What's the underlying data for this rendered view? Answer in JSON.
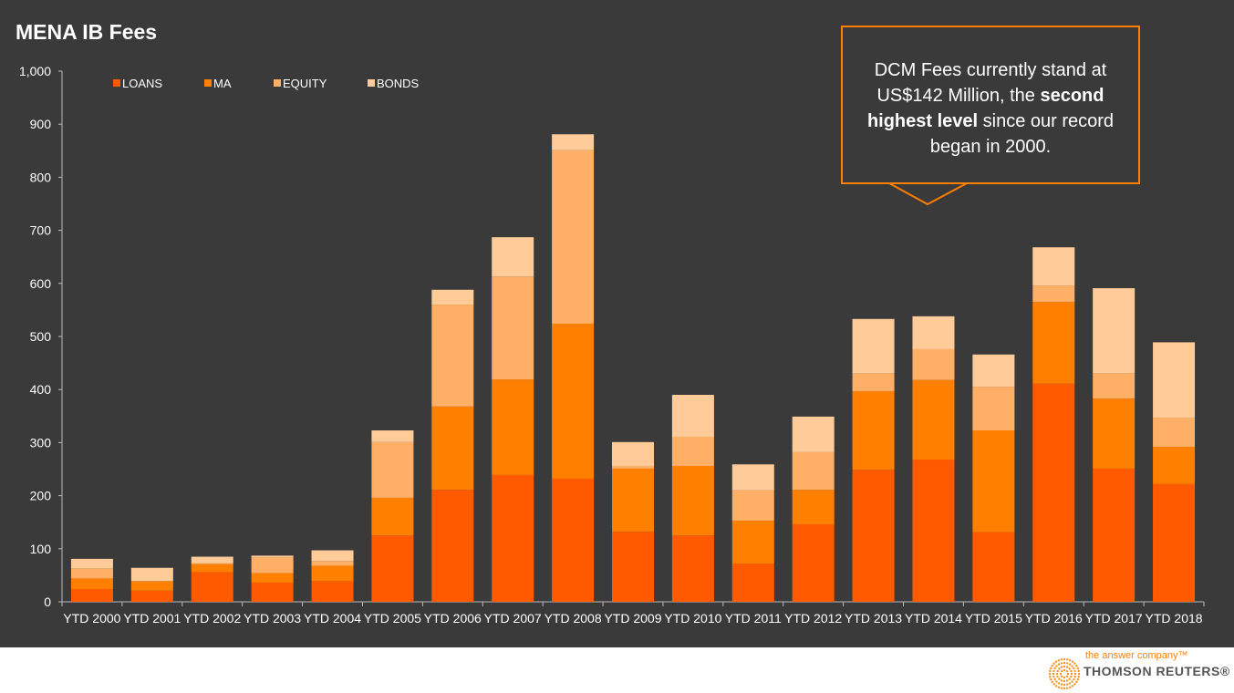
{
  "title": "MENA IB Fees",
  "callout": {
    "text_a": "DCM Fees currently stand at US$142 Million, the ",
    "text_bold": "second highest level",
    "text_b": " since our record began in 2000."
  },
  "footer": {
    "tagline": "the answer company™",
    "brand": "THOMSON REUTERS®"
  },
  "colors": {
    "background": "#3a3a3a",
    "accent": "#ff8000"
  },
  "chart_data": {
    "type": "bar",
    "stacked": true,
    "title": "MENA IB Fees",
    "ylim": [
      0,
      1000
    ],
    "yticks": [
      0,
      100,
      200,
      300,
      400,
      500,
      600,
      700,
      800,
      900,
      1000
    ],
    "ytick_labels": [
      "0",
      "100",
      "200",
      "300",
      "400",
      "500",
      "600",
      "700",
      "800",
      "900",
      "1,000"
    ],
    "legend_position": "top-left",
    "categories": [
      "YTD 2000",
      "YTD 2001",
      "YTD 2002",
      "YTD 2003",
      "YTD 2004",
      "YTD 2005",
      "YTD 2006",
      "YTD 2007",
      "YTD 2008",
      "YTD 2009",
      "YTD 2010",
      "YTD 2011",
      "YTD 2012",
      "YTD 2013",
      "YTD 2014",
      "YTD 2015",
      "YTD 2016",
      "YTD 2017",
      "YTD 2018"
    ],
    "series": [
      {
        "name": "LOANS",
        "color": "#ff5a00",
        "values": [
          24,
          21,
          56,
          36,
          39,
          125,
          211,
          239,
          232,
          132,
          125,
          72,
          146,
          249,
          268,
          131,
          411,
          251,
          222
        ]
      },
      {
        "name": "MA",
        "color": "#ff8000",
        "values": [
          20,
          18,
          15,
          18,
          29,
          71,
          157,
          180,
          292,
          119,
          131,
          81,
          65,
          148,
          150,
          192,
          154,
          132,
          70
        ]
      },
      {
        "name": "EQUITY",
        "color": "#ffaf66",
        "values": [
          19,
          0,
          2,
          30,
          9,
          105,
          192,
          194,
          327,
          5,
          55,
          57,
          71,
          34,
          58,
          82,
          31,
          48,
          55
        ]
      },
      {
        "name": "BONDS",
        "color": "#ffcc99",
        "values": [
          18,
          25,
          12,
          3,
          20,
          22,
          28,
          74,
          30,
          45,
          79,
          49,
          67,
          102,
          62,
          61,
          72,
          160,
          142
        ]
      }
    ]
  }
}
